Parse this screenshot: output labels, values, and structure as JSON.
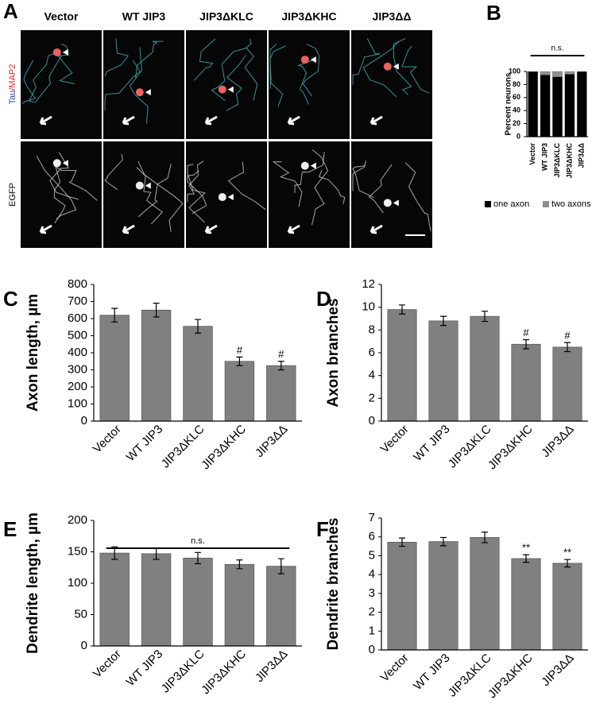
{
  "panel_a": {
    "label": "A",
    "columns": [
      "Vector",
      "WT JIP3",
      "JIP3ΔKLC",
      "JIP3ΔKHC",
      "JIP3ΔΔ"
    ],
    "row_labels": [
      {
        "parts": [
          "Tau",
          "/MAP2"
        ]
      },
      {
        "parts": [
          "EGFP"
        ]
      }
    ]
  },
  "chart_data": [
    {
      "label": "B",
      "type": "bar",
      "stacked": true,
      "y_label": "Percent neurons",
      "significance": "n.s.",
      "categories": [
        "Vector",
        "WT JIP3",
        "JIP3ΔKLC",
        "JIP3ΔKHC",
        "JIP3ΔΔ"
      ],
      "series": [
        {
          "name": "one axon",
          "color": "#000000",
          "values": [
            100,
            95,
            92,
            96,
            100
          ]
        },
        {
          "name": "two axons",
          "color": "#909090",
          "values": [
            0,
            5,
            8,
            4,
            0
          ]
        }
      ],
      "ylim": [
        0,
        100
      ],
      "yticks": [
        0,
        20,
        40,
        60,
        80,
        100
      ]
    },
    {
      "label": "C",
      "type": "bar",
      "y_label": "Axon length, µm",
      "color": "#808080",
      "categories": [
        "Vector",
        "WT JIP3",
        "JIP3ΔKLC",
        "JIP3ΔKHC",
        "JIP3ΔΔ"
      ],
      "values": [
        620,
        650,
        555,
        350,
        325
      ],
      "errors": [
        40,
        40,
        40,
        25,
        25
      ],
      "annotations": [
        null,
        null,
        null,
        "#",
        "#"
      ],
      "ylim": [
        0,
        800
      ],
      "yticks": [
        0,
        100,
        200,
        300,
        400,
        500,
        600,
        700,
        800
      ]
    },
    {
      "label": "D",
      "type": "bar",
      "y_label": "Axon branches",
      "color": "#808080",
      "categories": [
        "Vector",
        "WT JIP3",
        "JIP3ΔKLC",
        "JIP3ΔKHC",
        "JIP3ΔΔ"
      ],
      "values": [
        9.8,
        8.8,
        9.2,
        6.75,
        6.5
      ],
      "errors": [
        0.4,
        0.4,
        0.45,
        0.4,
        0.4
      ],
      "annotations": [
        null,
        null,
        null,
        "#",
        "#"
      ],
      "ylim": [
        0,
        12
      ],
      "yticks": [
        0,
        2,
        4,
        6,
        8,
        10,
        12
      ]
    },
    {
      "label": "E",
      "type": "bar",
      "y_label": "Dendrite length, µm",
      "color": "#808080",
      "significance": "n.s.",
      "categories": [
        "Vector",
        "WT JIP3",
        "JIP3ΔKLC",
        "JIP3ΔKHC",
        "JIP3ΔΔ"
      ],
      "values": [
        148,
        147,
        140,
        130,
        127
      ],
      "errors": [
        10,
        9,
        9,
        7,
        12
      ],
      "ylim": [
        0,
        200
      ],
      "yticks": [
        0,
        50,
        100,
        150,
        200
      ]
    },
    {
      "label": "F",
      "type": "bar",
      "y_label": "Dendrite branches",
      "color": "#808080",
      "categories": [
        "Vector",
        "WT JIP3",
        "JIP3ΔKLC",
        "JIP3ΔKHC",
        "JIP3ΔΔ"
      ],
      "values": [
        5.72,
        5.75,
        5.97,
        4.85,
        4.6
      ],
      "errors": [
        0.22,
        0.22,
        0.28,
        0.2,
        0.2
      ],
      "annotations": [
        null,
        null,
        null,
        "**",
        "**"
      ],
      "ylim": [
        0,
        7
      ],
      "yticks": [
        0,
        1,
        2,
        3,
        4,
        5,
        6,
        7
      ]
    }
  ]
}
